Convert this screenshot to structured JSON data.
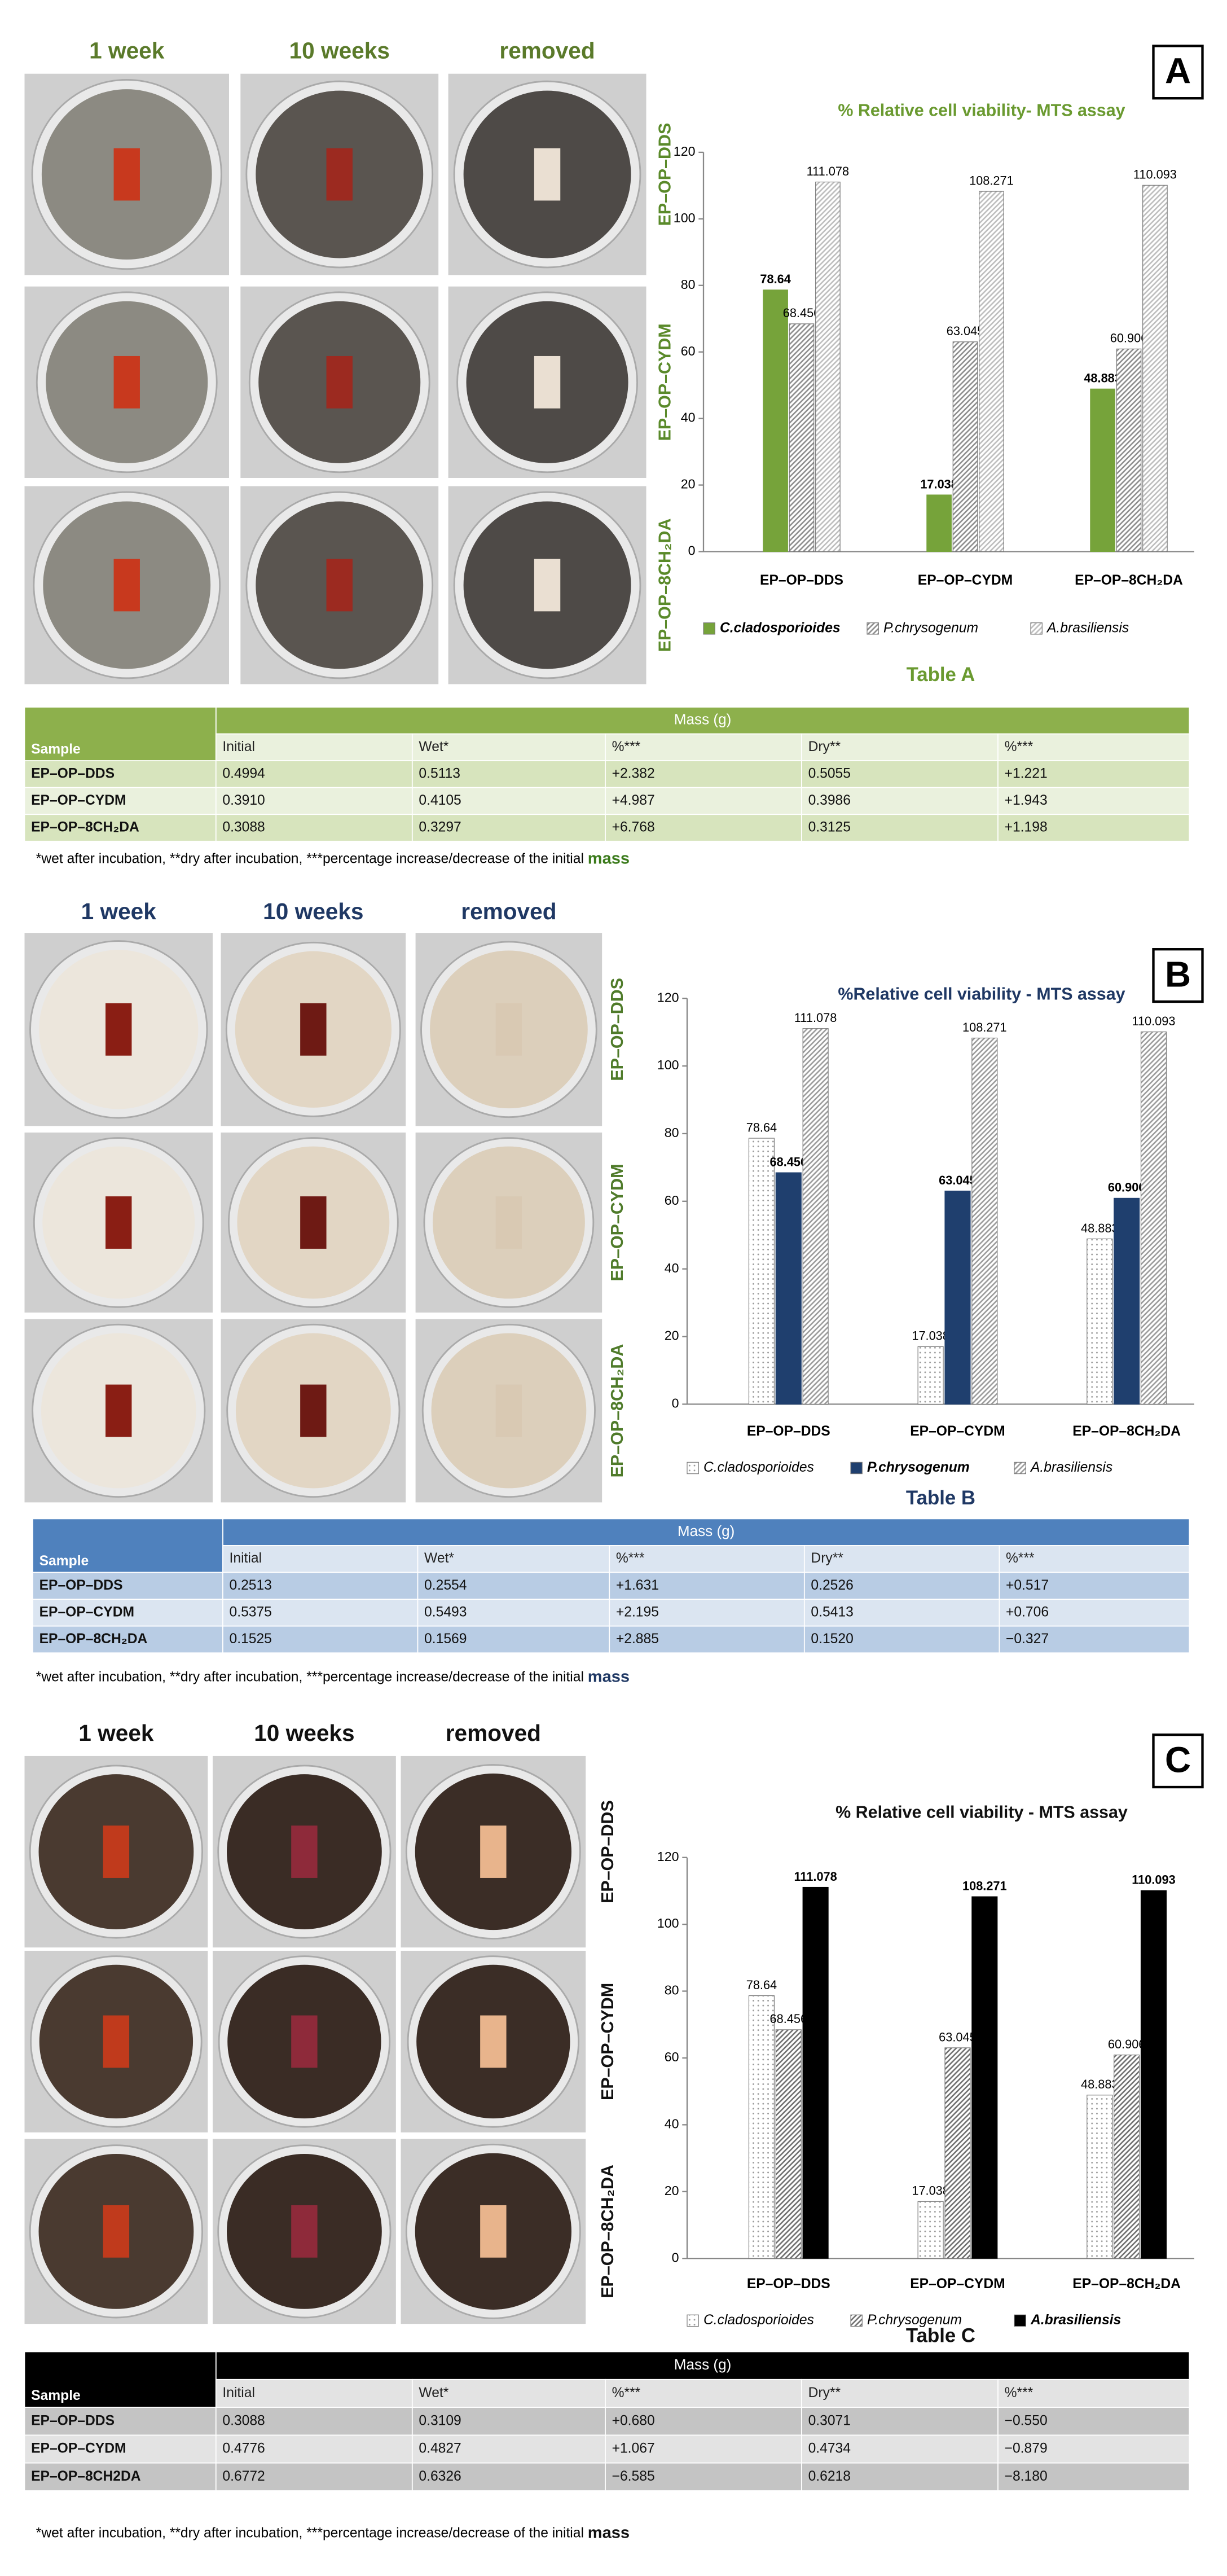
{
  "panels": [
    {
      "letter": "A",
      "photo_columns": [
        "1 week",
        "10 weeks",
        "removed"
      ],
      "photo_rows": [
        "EP–OP–DDS",
        "EP–OP–CYDM",
        "EP–OP–8CH₂DA"
      ],
      "table": {
        "caption": "Table A",
        "group_header": "Mass (g)",
        "columns": [
          "Sample",
          "Initial",
          "Wet*",
          "%***",
          "Dry**",
          "%***"
        ],
        "rows": [
          [
            "EP–OP–DDS",
            "0.4994",
            "0.5113",
            "+2.382",
            "0.5055",
            "+1.221"
          ],
          [
            "EP–OP–CYDM",
            "0.3910",
            "0.4105",
            "+4.987",
            "0.3986",
            "+1.943"
          ],
          [
            "EP–OP–8CH₂DA",
            "0.3088",
            "0.3297",
            "+6.768",
            "0.3125",
            "+1.198"
          ]
        ]
      },
      "footnote": "*wet after incubation, **dry after incubation, ***percentage increase/decrease of the initial ",
      "footnote_emphasis": "mass"
    },
    {
      "letter": "B",
      "photo_columns": [
        "1 week",
        "10 weeks",
        "removed"
      ],
      "photo_rows": [
        "EP–OP–DDS",
        "EP–OP–CYDM",
        "EP–OP–8CH₂DA"
      ],
      "table": {
        "caption": "Table B",
        "group_header": "Mass (g)",
        "columns": [
          "Sample",
          "Initial",
          "Wet*",
          "%***",
          "Dry**",
          "%***"
        ],
        "rows": [
          [
            "EP–OP–DDS",
            "0.2513",
            "0.2554",
            "+1.631",
            "0.2526",
            "+0.517"
          ],
          [
            "EP–OP–CYDM",
            "0.5375",
            "0.5493",
            "+2.195",
            "0.5413",
            "+0.706"
          ],
          [
            "EP–OP–8CH₂DA",
            "0.1525",
            "0.1569",
            "+2.885",
            "0.1520",
            "−0.327"
          ]
        ]
      },
      "footnote": "*wet after incubation, **dry after incubation, ***percentage increase/decrease of the initial ",
      "footnote_emphasis": "mass"
    },
    {
      "letter": "C",
      "photo_columns": [
        "1 week",
        "10 weeks",
        "removed"
      ],
      "photo_rows": [
        "EP–OP–DDS",
        "EP–OP–CYDM",
        "EP–OP–8CH₂DA"
      ],
      "table": {
        "caption": "Table C",
        "group_header": "Mass (g)",
        "columns": [
          "Sample",
          "Initial",
          "Wet*",
          "%***",
          "Dry**",
          "%***"
        ],
        "rows": [
          [
            "EP–OP–DDS",
            "0.3088",
            "0.3109",
            "+0.680",
            "0.3071",
            "−0.550"
          ],
          [
            "EP–OP–CYDM",
            "0.4776",
            "0.4827",
            "+1.067",
            "0.4734",
            "−0.879"
          ],
          [
            "EP–OP–8CH2DA",
            "0.6772",
            "0.6326",
            "−6.585",
            "0.6218",
            "−8.180"
          ]
        ]
      },
      "footnote": "*wet after incubation, **dry after incubation, ***percentage increase/decrease of the initial ",
      "footnote_emphasis": "mass"
    }
  ],
  "chart_data": [
    {
      "type": "bar",
      "title": "% Relative cell viability- MTS assay",
      "categories": [
        "EP–OP–DDS",
        "EP–OP–CYDM",
        "EP–OP–8CH₂DA"
      ],
      "series": [
        {
          "name": "C.cladosporioides",
          "color": "#76a33a",
          "values": [
            78.64,
            17.038,
            48.883
          ]
        },
        {
          "name": "P.chrysogenum",
          "color": "#8c8c8c",
          "pattern": "hatch",
          "values": [
            68.456,
            63.045,
            60.906
          ]
        },
        {
          "name": "A.brasiliensis",
          "color": "#bdbdbd",
          "pattern": "hatch",
          "values": [
            111.078,
            108.271,
            110.093
          ]
        }
      ],
      "ylim": [
        0,
        120
      ],
      "yticks": [
        0,
        20,
        40,
        60,
        80,
        100,
        120
      ],
      "grid": false,
      "legend": "bottom"
    },
    {
      "type": "bar",
      "title": "%Relative cell viability - MTS assay",
      "categories": [
        "EP–OP–DDS",
        "EP–OP–CYDM",
        "EP–OP–8CH₂DA"
      ],
      "series": [
        {
          "name": "C.cladosporioides",
          "color": "#9a9a9a",
          "pattern": "dots",
          "values": [
            78.64,
            17.038,
            48.883
          ]
        },
        {
          "name": "P.chrysogenum",
          "color": "#1f3f6e",
          "values": [
            68.456,
            63.045,
            60.906
          ]
        },
        {
          "name": "A.brasiliensis",
          "color": "#9a9a9a",
          "pattern": "hatch",
          "values": [
            111.078,
            108.271,
            110.093
          ]
        }
      ],
      "ylim": [
        0,
        120
      ],
      "yticks": [
        0,
        20,
        40,
        60,
        80,
        100,
        120
      ],
      "grid": false,
      "legend": "bottom"
    },
    {
      "type": "bar",
      "title": "% Relative cell viability - MTS assay",
      "categories": [
        "EP–OP–DDS",
        "EP–OP–CYDM",
        "EP–OP–8CH₂DA"
      ],
      "series": [
        {
          "name": "C.cladosporioides",
          "color": "#9a9a9a",
          "pattern": "dots",
          "values": [
            78.64,
            17.038,
            48.883
          ]
        },
        {
          "name": "P.chrysogenum",
          "color": "#6e6e6e",
          "pattern": "hatch",
          "values": [
            68.456,
            63.045,
            60.906
          ]
        },
        {
          "name": "A.brasiliensis",
          "color": "#000000",
          "values": [
            111.078,
            108.271,
            110.093
          ]
        }
      ],
      "ylim": [
        0,
        120
      ],
      "yticks": [
        0,
        20,
        40,
        60,
        80,
        100,
        120
      ],
      "grid": false,
      "legend": "bottom"
    }
  ]
}
